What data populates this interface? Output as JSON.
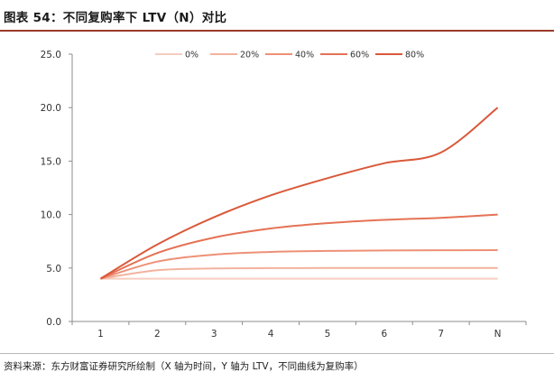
{
  "figure": {
    "title": "图表 54：不同复购率下 LTV（N）对比",
    "source": "资料来源：东方财富证券研究所绘制（X 轴为时间，Y 轴为 LTV，不同曲线为复购率）"
  },
  "chart_data": {
    "type": "line",
    "categories": [
      "1",
      "2",
      "3",
      "4",
      "5",
      "6",
      "7",
      "N"
    ],
    "ylim": [
      0,
      25
    ],
    "yticks": [
      "0.0",
      "5.0",
      "10.0",
      "15.0",
      "20.0",
      "25.0"
    ],
    "grid": false,
    "legend_position": "top",
    "series": [
      {
        "name": "0%",
        "color": "#f6cdbf",
        "values": [
          4.0,
          4.0,
          4.0,
          4.0,
          4.0,
          4.0,
          4.0,
          4.0
        ]
      },
      {
        "name": "20%",
        "color": "#f3b29e",
        "values": [
          4.0,
          4.8,
          4.96,
          4.99,
          5.0,
          5.0,
          5.0,
          5.0
        ]
      },
      {
        "name": "40%",
        "color": "#ee9077",
        "values": [
          4.0,
          5.6,
          6.25,
          6.5,
          6.6,
          6.64,
          6.66,
          6.67
        ]
      },
      {
        "name": "60%",
        "color": "#e57255",
        "values": [
          4.0,
          6.4,
          7.85,
          8.7,
          9.2,
          9.5,
          9.7,
          10.0
        ]
      },
      {
        "name": "80%",
        "color": "#d9593a",
        "values": [
          4.0,
          7.2,
          9.75,
          11.8,
          13.4,
          14.8,
          15.8,
          20.0
        ]
      }
    ]
  }
}
